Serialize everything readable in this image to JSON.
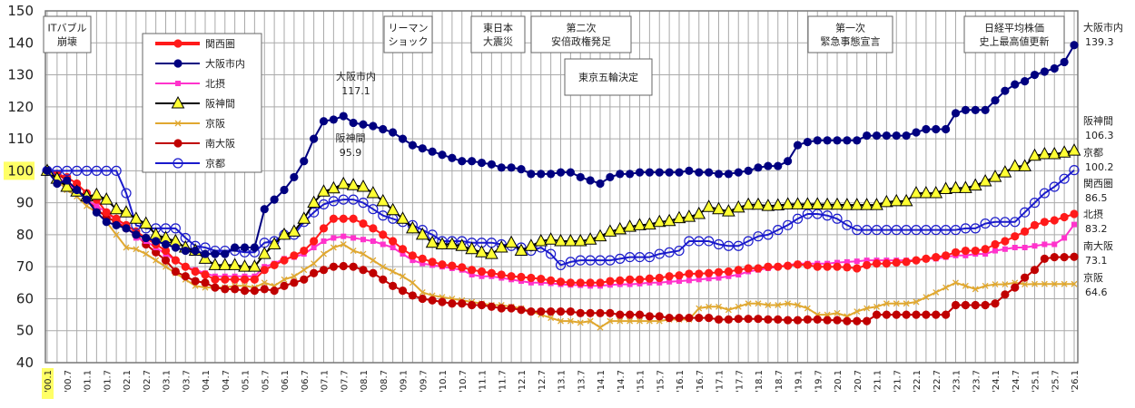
{
  "chart_data": {
    "type": "line",
    "title": "",
    "xlabel": "",
    "ylabel": "",
    "ylim": [
      40,
      150
    ],
    "yticks": [
      40,
      50,
      60,
      70,
      80,
      90,
      100,
      110,
      120,
      130,
      140,
      150
    ],
    "highlighted_ytick": "100",
    "grid": true,
    "legend_position": "top-left",
    "x_period": "quarterly, '00.1 to '26.1",
    "xtick_labels": [
      "'00.1",
      "'00.7",
      "'01.1",
      "'01.7",
      "'02.1",
      "'02.7",
      "'03.1",
      "'03.7",
      "'04.1",
      "'04.7",
      "'05.1",
      "'05.7",
      "'06.1",
      "'06.7",
      "'07.1",
      "'07.7",
      "'08.1",
      "'08.7",
      "'09.1",
      "'09.7",
      "'10.1",
      "'10.7",
      "'11.1",
      "'11.7",
      "'12.1",
      "'12.7",
      "'13.1",
      "'13.7",
      "'14.1",
      "'14.7",
      "'15.1",
      "'15.7",
      "'16.1",
      "'16.7",
      "'17.1",
      "'17.7",
      "'18.1",
      "'18.7",
      "'19.1",
      "'19.7",
      "'20.1",
      "'20.7",
      "'21.1",
      "'21.7",
      "'22.1",
      "'22.7",
      "'23.1",
      "'23.7",
      "'24.1",
      "'24.7",
      "'25.1",
      "'25.7",
      "'26.1"
    ],
    "highlight_color": "#ffff66",
    "series": [
      {
        "name": "関西圏",
        "color": "#ff1a1a",
        "marker": "circle-filled",
        "values": [
          100,
          99,
          98,
          96,
          93,
          91,
          87,
          85,
          83,
          81,
          79,
          77,
          75,
          72,
          70,
          68.5,
          67.5,
          66,
          66,
          66,
          66,
          66,
          69,
          70.5,
          72,
          73.5,
          75,
          78,
          82,
          85,
          85,
          85,
          83.5,
          82,
          80,
          78,
          75.5,
          73.5,
          72.5,
          71.5,
          70.7,
          70.3,
          69.8,
          69,
          68.5,
          68,
          67.5,
          67,
          66.8,
          66.5,
          66.2,
          65.7,
          65.3,
          65,
          65,
          65,
          65,
          65.5,
          65.7,
          66,
          66,
          66.3,
          66.5,
          67,
          67.3,
          67.8,
          67.8,
          68,
          68.3,
          68.5,
          69,
          69.5,
          69.5,
          70,
          70,
          70.3,
          70.7,
          70.5,
          70,
          70,
          70,
          69.8,
          69.5,
          70.5,
          71,
          71,
          71.3,
          71.5,
          72,
          72.5,
          73,
          73.5,
          74.5,
          75,
          75,
          75.5,
          77,
          78,
          79.5,
          81,
          83,
          84,
          84.5,
          85.5,
          86.5
        ]
      },
      {
        "name": "大阪市内",
        "color": "#000080",
        "marker": "circle-filled",
        "values": [
          100,
          96,
          97,
          94,
          91,
          87,
          84,
          83,
          82,
          80,
          79,
          78,
          77,
          76,
          75,
          75,
          74,
          74,
          74,
          76,
          76,
          76,
          88,
          91,
          94,
          98,
          103,
          110,
          115.5,
          116,
          117.1,
          115,
          114.5,
          114,
          113,
          112,
          110,
          108,
          107,
          106,
          105,
          104,
          103,
          103,
          102.5,
          102,
          101,
          101,
          100.5,
          99,
          99,
          99,
          99.5,
          99.5,
          98,
          97,
          96,
          98,
          99,
          99,
          99.5,
          99.5,
          99.5,
          99.5,
          99.5,
          100,
          99.5,
          99.5,
          99,
          99,
          99.5,
          100,
          101,
          101.5,
          101.5,
          103,
          108,
          109,
          109.5,
          109.5,
          109.5,
          109.5,
          109.5,
          111,
          111,
          111,
          111,
          111,
          112,
          113,
          113,
          113,
          118,
          119,
          119,
          119,
          122,
          125,
          127,
          128,
          130,
          131,
          132,
          134,
          139.3
        ]
      },
      {
        "name": "北摂",
        "color": "#ff33cc",
        "marker": "square",
        "values": [
          100,
          98,
          96,
          94,
          91,
          89,
          87,
          84.5,
          83,
          79,
          78,
          76,
          74,
          72,
          70,
          69,
          68,
          67,
          67,
          67,
          67,
          67,
          70,
          71,
          72.5,
          73,
          74,
          76,
          78,
          79,
          79.5,
          79,
          78.5,
          78,
          77,
          76,
          74,
          72,
          71,
          70.5,
          70,
          69.5,
          69,
          67.5,
          67,
          67,
          66.5,
          66,
          65.5,
          65,
          65,
          64.8,
          64.5,
          64.3,
          64.2,
          64,
          64,
          64.3,
          64.5,
          64.5,
          64.7,
          65,
          65,
          65.3,
          65.5,
          65.7,
          66,
          66.3,
          66.5,
          67,
          67.5,
          68.5,
          69,
          69.5,
          70,
          70.5,
          71,
          71,
          71,
          71,
          71.3,
          71.5,
          71.7,
          72,
          72,
          72,
          72,
          72,
          72,
          72.5,
          72.5,
          73,
          73.5,
          73.5,
          74,
          74,
          75,
          75.5,
          76,
          76,
          76.5,
          77,
          77,
          79,
          83.2
        ]
      },
      {
        "name": "阪神間",
        "color": "#000000",
        "fill": "#ffff33",
        "marker": "triangle",
        "values": [
          100,
          97.5,
          95,
          93.5,
          92,
          92.5,
          91,
          88,
          87,
          85,
          83.5,
          80,
          79,
          78,
          76,
          75,
          72.5,
          70.5,
          70.5,
          70.5,
          70,
          70,
          74,
          77,
          80,
          81,
          85,
          90,
          93.5,
          94.5,
          95.9,
          95.5,
          95,
          93,
          90.5,
          87.7,
          85,
          82,
          80,
          77.5,
          77,
          77,
          76.5,
          75.5,
          74.5,
          74,
          76,
          77.5,
          75,
          76.5,
          78,
          78.5,
          78,
          78,
          78,
          78.5,
          79.5,
          81,
          81.7,
          82.5,
          83,
          83.2,
          84,
          84.3,
          85.2,
          85.6,
          86.5,
          88.7,
          88,
          87.3,
          88.5,
          89.4,
          89.4,
          89,
          89.2,
          89.5,
          89.5,
          89.5,
          89.5,
          89.4,
          89.4,
          89.3,
          89.3,
          89.3,
          89.3,
          90.2,
          90.5,
          90.5,
          93,
          93,
          93,
          94.3,
          94.6,
          94.6,
          95.4,
          96.7,
          98.1,
          99.5,
          101.4,
          101.4,
          104.7,
          105.2,
          105.2,
          105.7,
          106.3
        ]
      },
      {
        "name": "京阪",
        "color": "#e0a830",
        "marker": "x",
        "values": [
          100,
          97,
          94,
          92,
          89,
          87,
          84,
          80,
          76,
          75.5,
          74,
          72,
          70,
          68,
          66,
          64,
          63.5,
          63.5,
          63.5,
          64,
          64,
          63.5,
          65,
          64,
          66,
          67,
          69,
          71,
          74,
          76,
          77,
          75,
          74,
          72,
          70,
          68.5,
          67,
          65,
          62,
          61,
          60.5,
          60,
          59.5,
          59,
          58.5,
          58,
          58,
          57.5,
          57,
          56,
          55,
          54,
          53,
          53,
          52.5,
          53,
          51,
          53,
          53,
          53,
          53,
          53,
          53,
          53.5,
          53.5,
          53.5,
          57,
          57.5,
          57.5,
          56.5,
          57.5,
          58.5,
          58.5,
          58,
          58,
          58.5,
          58,
          57,
          55,
          55,
          55.5,
          54.5,
          56,
          57,
          57.5,
          58.5,
          58.5,
          58.5,
          59,
          60.5,
          62,
          63.5,
          65,
          64,
          63,
          64,
          64.5,
          64.5,
          65,
          64.5,
          64.6,
          64.6,
          64.6,
          64.6,
          64.6
        ]
      },
      {
        "name": "南大阪",
        "color": "#c00000",
        "marker": "circle-filled",
        "values": [
          100,
          99,
          97,
          94,
          91,
          88,
          85.5,
          84,
          82,
          80,
          77,
          74.5,
          72,
          68.5,
          67,
          65.5,
          65,
          63.5,
          63,
          63,
          62.5,
          62.5,
          63,
          62.5,
          64,
          65,
          66,
          68,
          69,
          70,
          70.2,
          70,
          69,
          68,
          66,
          64,
          62.5,
          61,
          60,
          59.5,
          59,
          58.5,
          58.5,
          58,
          58,
          57.5,
          57,
          57,
          56.5,
          56,
          56,
          56,
          56,
          56,
          55.5,
          55.5,
          55.5,
          55.5,
          55,
          55,
          55,
          54.5,
          54.5,
          54,
          54,
          54,
          54,
          54,
          53.5,
          53.5,
          53.7,
          53.7,
          53.7,
          53.5,
          53.5,
          53.3,
          53.3,
          53.5,
          53.5,
          53.3,
          53.3,
          53,
          53,
          53,
          55,
          55,
          55,
          55,
          55,
          55,
          55,
          55,
          58,
          58,
          58,
          58,
          58.5,
          61.3,
          63.5,
          66.6,
          69,
          72.5,
          73,
          73,
          73.1
        ]
      },
      {
        "name": "京都",
        "color": "#1a1acc",
        "marker": "circle-open",
        "values": [
          100,
          100,
          100,
          100,
          100,
          100,
          100,
          100,
          93,
          83,
          82,
          82,
          82,
          82,
          79,
          76.5,
          76,
          75,
          75,
          75,
          74.5,
          74.5,
          77.5,
          78,
          80,
          80,
          84,
          87,
          89.5,
          90.5,
          91,
          91,
          90,
          88,
          86,
          85,
          84,
          83,
          81.5,
          80,
          78,
          78,
          78,
          77.5,
          77.5,
          77.5,
          77,
          76.5,
          76,
          75,
          76,
          74,
          70.5,
          71.5,
          72,
          72,
          72,
          72,
          72.5,
          73,
          73,
          73,
          74,
          74.5,
          75,
          78,
          78,
          78,
          77,
          76.5,
          76.5,
          78,
          79.5,
          80,
          81.5,
          83,
          85,
          86.5,
          86.5,
          86,
          85,
          83,
          81.5,
          81.5,
          81.5,
          81.5,
          81.5,
          81.5,
          81.5,
          81.5,
          81.5,
          81.5,
          81.5,
          82,
          82,
          83.5,
          84,
          84,
          84,
          87,
          90,
          93,
          95,
          97.5,
          100.2
        ]
      }
    ],
    "annotations": [
      {
        "id": "it",
        "lines": [
          "ITバブル",
          "崩壊"
        ]
      },
      {
        "id": "lehman",
        "lines": [
          "リーマン",
          "ショック"
        ]
      },
      {
        "id": "quake",
        "lines": [
          "東日本",
          "大震災"
        ]
      },
      {
        "id": "abe",
        "lines": [
          "第二次",
          "安倍政権発足"
        ]
      },
      {
        "id": "olympics",
        "lines": [
          "東京五輪決定"
        ]
      },
      {
        "id": "emergency",
        "lines": [
          "第一次",
          "緊急事態宣言"
        ]
      },
      {
        "id": "nikkei",
        "lines": [
          "日経平均株価",
          "史上最高値更新"
        ]
      }
    ],
    "point_labels": [
      {
        "series": "大阪市内",
        "value": "117.1"
      },
      {
        "series": "阪神間",
        "value": "95.9"
      }
    ],
    "end_labels": [
      {
        "series": "大阪市内",
        "value": "139.3"
      },
      {
        "series": "阪神間",
        "value": "106.3"
      },
      {
        "series": "京都",
        "value": "100.2"
      },
      {
        "series": "関西圏",
        "value": "86.5"
      },
      {
        "series": "北摂",
        "value": "83.2"
      },
      {
        "series": "南大阪",
        "value": "73.1"
      },
      {
        "series": "京阪",
        "value": "64.6"
      }
    ]
  }
}
